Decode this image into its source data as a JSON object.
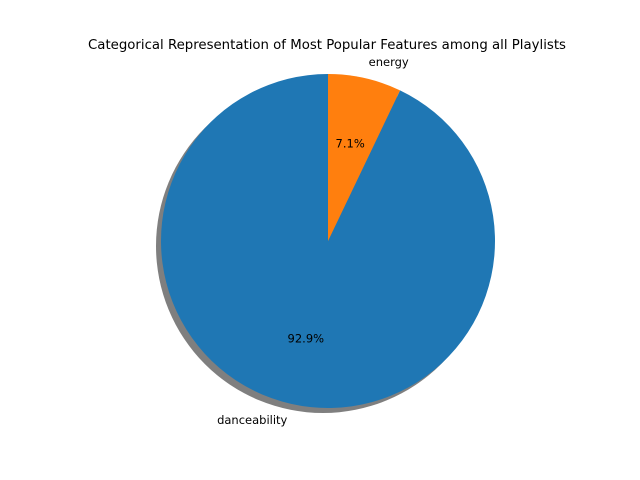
{
  "chart_data": {
    "type": "pie",
    "title": "Categorical Representation of Most Popular Features among all Playlists",
    "slices": [
      {
        "label": "danceability",
        "value": 92.9,
        "pct_label": "92.9%",
        "color": "#1f77b4"
      },
      {
        "label": "energy",
        "value": 7.1,
        "pct_label": "7.1%",
        "color": "#ff7f0e"
      }
    ],
    "start_angle_deg": 90,
    "direction": "counterclockwise",
    "shadow": true,
    "legend": "none"
  }
}
